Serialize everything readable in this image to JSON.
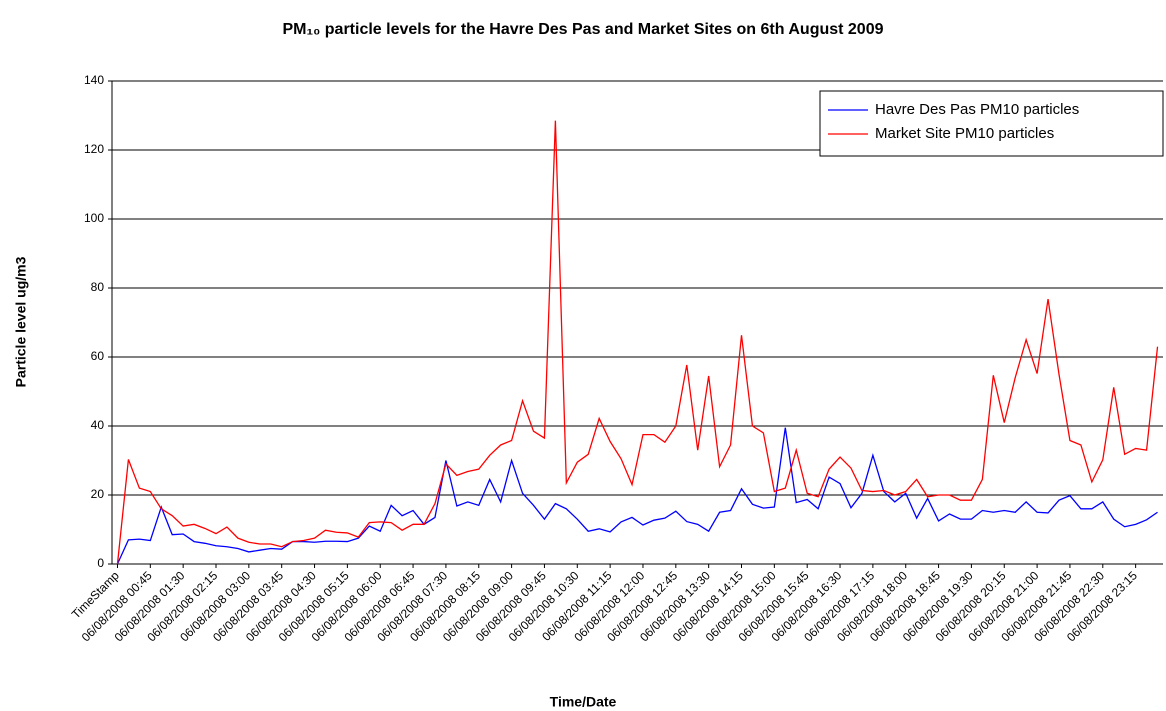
{
  "chart_data": {
    "type": "line",
    "title": "PM₁₀ particle levels for the Havre Des Pas and Market Sites on 6th August 2009",
    "x_label": "Time/Date",
    "y_label": "Particle level ug/m3",
    "categories": [
      "TimeStamp",
      null,
      null,
      "06/08/2008 00:45",
      null,
      null,
      "06/08/2008 01:30",
      null,
      null,
      "06/08/2008 02:15",
      null,
      null,
      "06/08/2008 03:00",
      null,
      null,
      "06/08/2008 03:45",
      null,
      null,
      "06/08/2008 04:30",
      null,
      null,
      "06/08/2008 05:15",
      null,
      null,
      "06/08/2008 06:00",
      null,
      null,
      "06/08/2008 06:45",
      null,
      null,
      "06/08/2008 07:30",
      null,
      null,
      "06/08/2008 08:15",
      null,
      null,
      "06/08/2008 09:00",
      null,
      null,
      "06/08/2008 09:45",
      null,
      null,
      "06/08/2008 10:30",
      null,
      null,
      "06/08/2008 11:15",
      null,
      null,
      "06/08/2008 12:00",
      null,
      null,
      "06/08/2008 12:45",
      null,
      null,
      "06/08/2008 13:30",
      null,
      null,
      "06/08/2008 14:15",
      null,
      null,
      "06/08/2008 15:00",
      null,
      null,
      "06/08/2008 15:45",
      null,
      null,
      "06/08/2008 16:30",
      null,
      null,
      "06/08/2008 17:15",
      null,
      null,
      "06/08/2008 18:00",
      null,
      null,
      "06/08/2008 18:45",
      null,
      null,
      "06/08/2008 19:30",
      null,
      null,
      "06/08/2008 20:15",
      null,
      null,
      "06/08/2008 21:00",
      null,
      null,
      "06/08/2008 21:45",
      null,
      null,
      "06/08/2008 22:30",
      null,
      null,
      "06/08/2008 23:15",
      null,
      null
    ],
    "series": [
      {
        "name": "Havre Des Pas PM10 particles",
        "color": "#0000ff",
        "values": [
          0,
          7,
          7.2,
          6.8,
          16.5,
          8.5,
          8.7,
          6.5,
          6,
          5.3,
          5,
          4.5,
          3.5,
          4,
          4.5,
          4.3,
          6.5,
          6.5,
          6.3,
          6.6,
          6.6,
          6.5,
          7.5,
          11,
          9.5,
          17,
          14,
          15.5,
          11.5,
          13.5,
          30,
          16.8,
          18,
          17,
          24.5,
          18,
          30,
          20.5,
          17,
          13,
          17.5,
          16,
          13,
          9.5,
          10.2,
          9.3,
          12.2,
          13.5,
          11.3,
          12.7,
          13.3,
          15.3,
          12.3,
          11.5,
          9.5,
          15,
          15.5,
          21.8,
          17.3,
          16.2,
          16.5,
          39.5,
          17.8,
          18.7,
          16,
          25.2,
          23.3,
          16.3,
          20.5,
          31.5,
          21,
          18,
          20.5,
          13.3,
          19,
          12.5,
          14.5,
          13,
          13,
          15.5,
          15,
          15.5,
          15,
          18,
          15,
          14.8,
          18.5,
          19.8,
          16,
          16,
          18,
          13,
          10.8,
          11.5,
          12.8,
          15
        ]
      },
      {
        "name": "Market Site PM10 particles",
        "color": "#ff0000",
        "values": [
          0,
          30.3,
          22,
          21,
          16,
          14,
          11,
          11.5,
          10.3,
          8.8,
          10.7,
          7.5,
          6.3,
          5.8,
          5.8,
          5,
          6.5,
          6.8,
          7.5,
          9.8,
          9.2,
          9,
          7.8,
          12,
          12.2,
          12,
          9.8,
          11.5,
          11.5,
          17.5,
          29,
          25.7,
          26.8,
          27.5,
          31.5,
          34.5,
          35.8,
          47.3,
          38.5,
          36.5,
          128.5,
          23.5,
          29.5,
          31.8,
          42.2,
          35.5,
          30.5,
          23,
          37.5,
          37.5,
          35.3,
          40,
          57.7,
          33,
          54.5,
          28.2,
          34.5,
          66.3,
          40,
          38,
          21,
          22,
          33,
          20.5,
          19.5,
          27.5,
          31,
          27.8,
          21.3,
          21,
          21.3,
          20,
          21,
          24.5,
          19.5,
          20,
          20,
          18.5,
          18.5,
          24.5,
          54.7,
          41,
          54,
          65,
          55.2,
          76.8,
          55,
          35.8,
          34.5,
          23.8,
          30.2,
          51.2,
          31.8,
          33.5,
          33,
          63
        ]
      }
    ],
    "ylim": [
      0,
      140
    ],
    "yticks": [
      0,
      20,
      40,
      60,
      80,
      100,
      120,
      140
    ],
    "grid": true,
    "legend": "top-right"
  }
}
